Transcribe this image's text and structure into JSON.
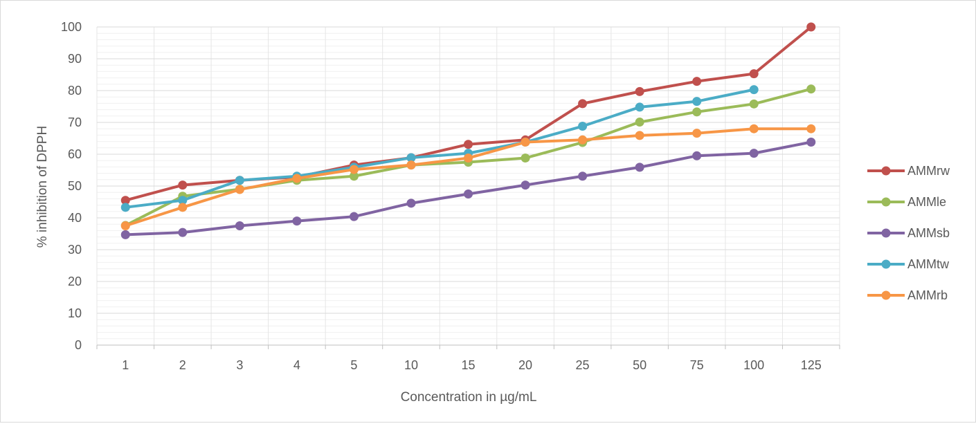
{
  "chart_data": {
    "type": "line",
    "title": "",
    "xlabel": "Concentration in µg/mL",
    "ylabel": "% inhibition of DPPH",
    "categories": [
      "1",
      "2",
      "3",
      "4",
      "5",
      "10",
      "15",
      "20",
      "25",
      "50",
      "75",
      "100",
      "125"
    ],
    "ylim": [
      0,
      100
    ],
    "y_ticks": [
      0,
      10,
      20,
      30,
      40,
      50,
      60,
      70,
      80,
      90,
      100
    ],
    "grid": true,
    "legend_position": "right",
    "series": [
      {
        "name": "AMMrw",
        "color": "#c0504d",
        "values": [
          45.5,
          50.3,
          51.8,
          52.8,
          56.6,
          58.9,
          63.1,
          64.5,
          75.9,
          79.7,
          82.9,
          85.3,
          100
        ]
      },
      {
        "name": "AMMle",
        "color": "#9bbb59",
        "values": [
          37.6,
          46.8,
          49.0,
          51.8,
          53.1,
          56.6,
          57.5,
          58.8,
          63.7,
          70.1,
          73.3,
          75.8,
          80.5
        ]
      },
      {
        "name": "AMMsb",
        "color": "#8064a2",
        "values": [
          34.7,
          35.4,
          37.5,
          39.0,
          40.4,
          44.6,
          47.5,
          50.3,
          53.1,
          55.9,
          59.5,
          60.3,
          63.8
        ]
      },
      {
        "name": "AMMtw",
        "color": "#4bacc6",
        "values": [
          43.3,
          45.5,
          51.8,
          53.1,
          55.9,
          58.9,
          60.3,
          63.8,
          68.8,
          74.8,
          76.6,
          80.3,
          null
        ]
      },
      {
        "name": "AMMrb",
        "color": "#f79646",
        "values": [
          37.5,
          43.3,
          48.9,
          52.4,
          55.2,
          56.6,
          58.8,
          63.8,
          64.5,
          65.9,
          66.6,
          68.0,
          68.0
        ]
      }
    ]
  }
}
